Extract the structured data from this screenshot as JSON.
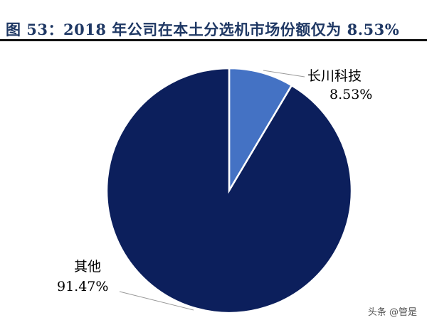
{
  "chart_data": {
    "type": "pie",
    "title": "图 53：2018 年公司在本土分选机市场份额仅为 8.53%",
    "slices": [
      {
        "label": "长川科技",
        "value": 8.53,
        "value_label": "8.53%",
        "color": "#4472c4"
      },
      {
        "label": "其他",
        "value": 91.47,
        "value_label": "91.47%",
        "color": "#0c1f5c"
      }
    ],
    "start_angle": "top, clockwise"
  },
  "watermark": "头条 @管是"
}
